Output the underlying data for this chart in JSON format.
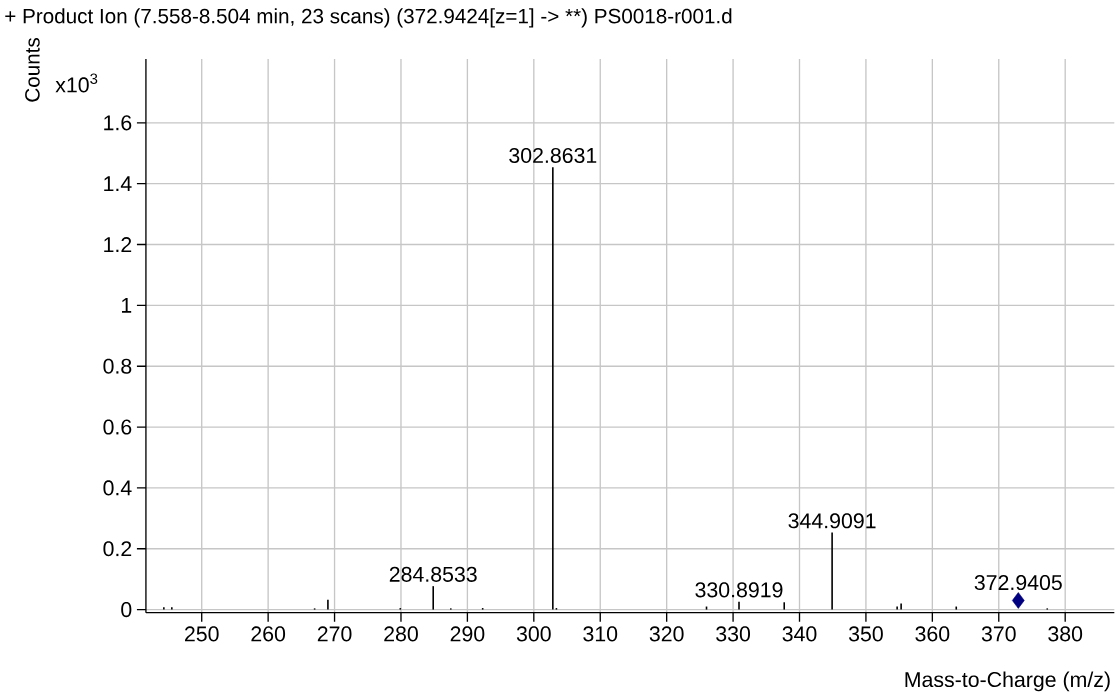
{
  "chart_data": {
    "type": "bar",
    "title": "+ Product Ion (7.558-8.504 min, 23 scans) (372.9424[z=1] -> **) PS0018-r001.d",
    "xlabel": "Mass-to-Charge (m/z)",
    "ylabel": "Counts",
    "annotations": [
      "x10$^{3}$",
      {
        "text": "284.8533",
        "x": 284.8533,
        "y": 0.077
      },
      {
        "text": "302.8631",
        "x": 302.8631,
        "y": 1.454
      },
      {
        "text": "330.8919",
        "x": 330.8919,
        "y": 0.026
      },
      {
        "text": "344.9091",
        "x": 344.9091,
        "y": 0.253
      },
      {
        "text": "372.9405",
        "x": 372.9405,
        "y": 0.05
      }
    ],
    "xlim": [
      241.6,
      387.4
    ],
    "ylim": [
      -0.01,
      1.81
    ],
    "xticks": [
      250,
      260,
      270,
      280,
      290,
      300,
      310,
      320,
      330,
      340,
      350,
      360,
      370,
      380
    ],
    "yticks": [
      0,
      0.2,
      0.4,
      0.6,
      0.8,
      1,
      1.2,
      1.4,
      1.6
    ],
    "grid": true,
    "series": [
      {
        "color": "#000000",
        "x": [
          244.3,
          245.5,
          267.0,
          269.0,
          279.9,
          284.8533,
          287.5,
          292.3,
          302.8631,
          303.4,
          326.0,
          330.8919,
          337.7,
          338.5,
          344.9091,
          354.7,
          355.3,
          363.6,
          377.3
        ],
        "values": [
          0.008,
          0.008,
          0.004,
          0.032,
          0.005,
          0.077,
          0.004,
          0.005,
          1.454,
          0.005,
          0.01,
          0.026,
          0.024,
          null,
          0.253,
          0.01,
          0.02,
          0.01,
          0.004
        ]
      },
      {
        "type": "scatter",
        "color": "#000080",
        "marker": "diamond",
        "x": [
          372.9405
        ],
        "values": [
          0.03
        ]
      }
    ]
  }
}
